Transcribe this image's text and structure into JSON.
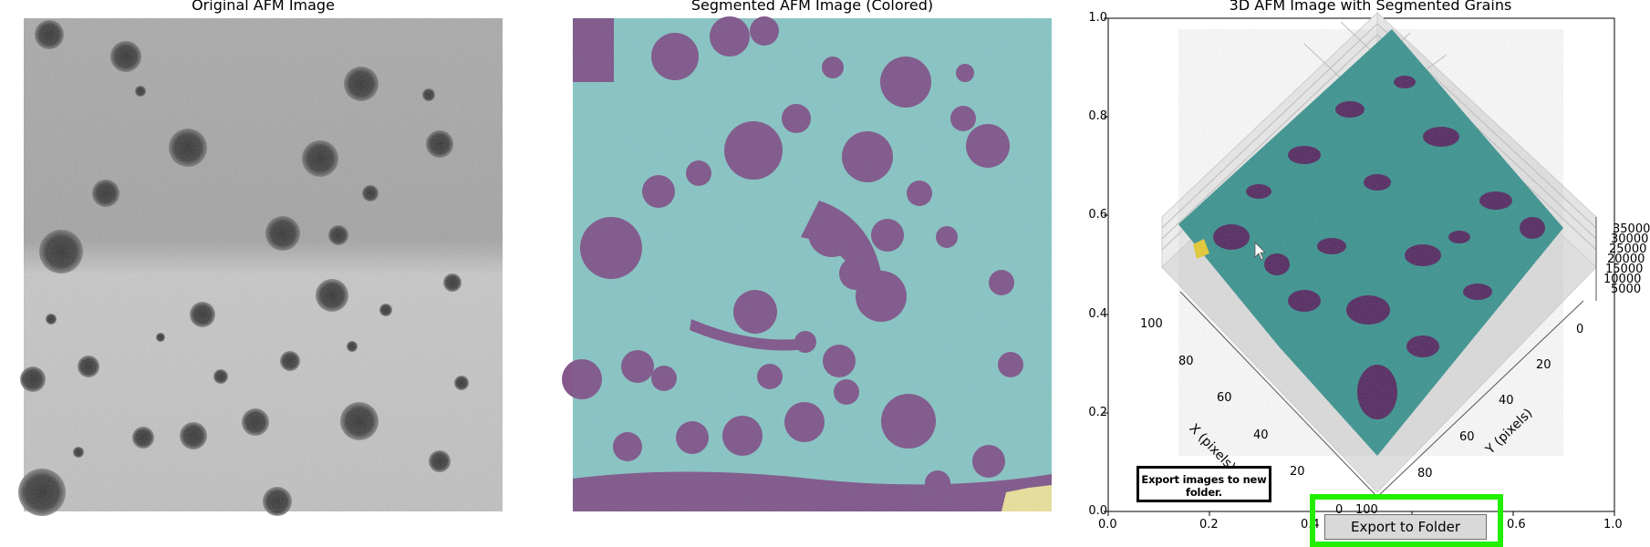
{
  "panels": {
    "original_title": "Original AFM Image",
    "segmented_title": "Segmented AFM Image (Colored)",
    "surface_title": "3D AFM Image with Segmented Grains"
  },
  "plot3d": {
    "y_ticks": [
      "1.0",
      "0.8",
      "0.6",
      "0.4",
      "0.2",
      "0.0"
    ],
    "x_ticks": [
      "0.0",
      "0.2",
      "0.4",
      "0.6",
      "0.8",
      "1.0"
    ],
    "x_pixel_ticks": [
      "100",
      "80",
      "60",
      "40",
      "20",
      "0"
    ],
    "y_pixel_ticks": [
      "0",
      "20",
      "40",
      "60",
      "80",
      "100"
    ],
    "z_ticks": [
      "35000",
      "30000",
      "25000",
      "20000",
      "15000",
      "10000",
      "5000"
    ],
    "x_axis_label": "X (pixels)",
    "y_axis_label": "Y (pixels)"
  },
  "tooltip": {
    "line1": "Export images to new",
    "line2": "folder."
  },
  "export_button": {
    "label": "Export to Folder"
  },
  "colors": {
    "grain": "#7d4f86",
    "background_teal": "#86c4c4",
    "surface_teal": "#2e8f8b",
    "highlight": "#22ee00",
    "button_face": "#d9d9d9"
  }
}
